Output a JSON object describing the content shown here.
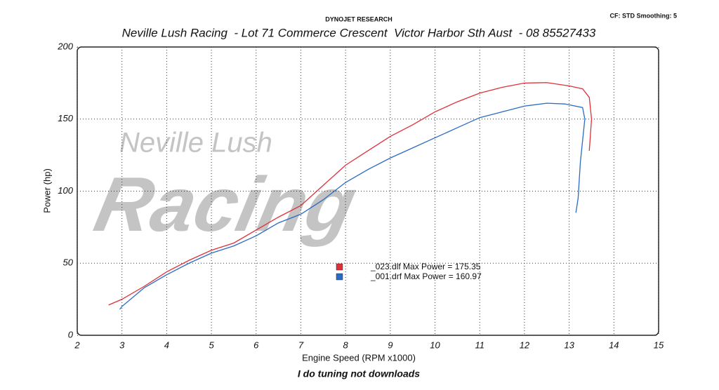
{
  "chart_data": {
    "type": "line",
    "header": "DYNOJET RESEARCH",
    "settings_label": "CF: STD  Smoothing: 5",
    "title": "Neville Lush Racing  - Lot 71 Commerce Crescent  Victor Harbor Sth Aust  - 08 85527433",
    "watermark": [
      "Neville Lush",
      "Racing"
    ],
    "x_label": "Engine Speed (RPM x1000)",
    "y_label": "Power (hp)",
    "footer": "I do tuning not downloads",
    "xlim": [
      2,
      15
    ],
    "xticks": [
      2,
      3,
      4,
      5,
      6,
      7,
      8,
      9,
      10,
      11,
      12,
      13,
      14,
      15
    ],
    "ylim": [
      0,
      200
    ],
    "yticks": [
      0,
      50,
      100,
      150,
      200
    ],
    "grid": true,
    "series": [
      {
        "name": "_023.dlf Max Power = 175.35",
        "color": "#e0303a",
        "x": [
          2.7,
          3,
          3.5,
          4,
          4.5,
          5,
          5.5,
          6,
          6.5,
          7,
          7.5,
          8,
          8.5,
          9,
          9.5,
          10,
          10.5,
          11,
          11.5,
          12,
          12.5,
          13,
          13.3,
          13.45,
          13.5,
          13.45
        ],
        "values": [
          21,
          25,
          34,
          44,
          52,
          59,
          64,
          73,
          82,
          90,
          104,
          118,
          128,
          138,
          146,
          155,
          162,
          168,
          172,
          175,
          175.3,
          173,
          171,
          165,
          150,
          128
        ]
      },
      {
        "name": "_001.drf Max Power = 160.97",
        "color": "#2a6bc4",
        "x": [
          2.95,
          3,
          3.5,
          4,
          4.5,
          5,
          5.5,
          6,
          6.5,
          7,
          7.5,
          8,
          8.5,
          9,
          9.5,
          10,
          10.5,
          11,
          11.5,
          12,
          12.5,
          12.9,
          13.3,
          13.35,
          13.25,
          13.2,
          13.15
        ],
        "values": [
          18,
          20,
          33,
          42,
          50,
          57,
          62,
          69,
          78,
          84,
          94,
          106,
          115,
          123,
          130,
          137,
          144,
          151,
          155,
          159,
          161,
          160.5,
          158,
          150,
          120,
          95,
          85
        ]
      }
    ]
  }
}
